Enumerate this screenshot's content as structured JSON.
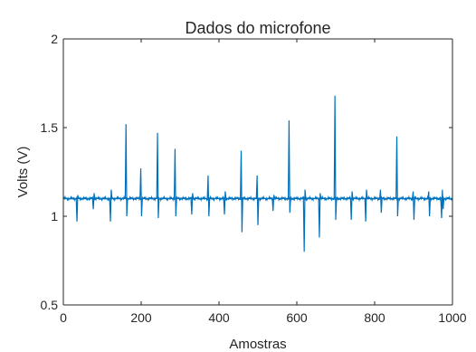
{
  "chart_data": {
    "type": "line",
    "title": "Dados do microfone",
    "xlabel": "Amostras",
    "ylabel": "Volts (V)",
    "xlim": [
      0,
      1000
    ],
    "ylim": [
      0.5,
      2
    ],
    "x_ticks": [
      "0",
      "200",
      "400",
      "600",
      "800",
      "1000"
    ],
    "y_ticks": [
      "0.5",
      "1",
      "1.5",
      "2"
    ],
    "grid": false,
    "legend": "none",
    "line_color": "#0072BD",
    "baseline": 1.1,
    "series": [
      {
        "points": [
          [
            0,
            1.1
          ],
          [
            33,
            1.1
          ],
          [
            35,
            0.97
          ],
          [
            37,
            1.12
          ],
          [
            39,
            1.1
          ],
          [
            75,
            1.1
          ],
          [
            77,
            1.04
          ],
          [
            79,
            1.13
          ],
          [
            81,
            1.1
          ],
          [
            119,
            1.1
          ],
          [
            121,
            0.97
          ],
          [
            123,
            1.15
          ],
          [
            125,
            1.1
          ],
          [
            159,
            1.1
          ],
          [
            161,
            1.52
          ],
          [
            163,
            1.0
          ],
          [
            165,
            1.1
          ],
          [
            197,
            1.1
          ],
          [
            199,
            1.27
          ],
          [
            201,
            1.0
          ],
          [
            203,
            1.1
          ],
          [
            240,
            1.1
          ],
          [
            242,
            1.47
          ],
          [
            244,
            0.99
          ],
          [
            246,
            1.1
          ],
          [
            285,
            1.1
          ],
          [
            287,
            1.38
          ],
          [
            289,
            1.0
          ],
          [
            291,
            1.1
          ],
          [
            328,
            1.1
          ],
          [
            330,
            1.01
          ],
          [
            332,
            1.13
          ],
          [
            334,
            1.1
          ],
          [
            370,
            1.1
          ],
          [
            372,
            1.23
          ],
          [
            374,
            1.0
          ],
          [
            376,
            1.1
          ],
          [
            412,
            1.1
          ],
          [
            414,
            1.01
          ],
          [
            416,
            1.14
          ],
          [
            418,
            1.1
          ],
          [
            455,
            1.1
          ],
          [
            457,
            1.37
          ],
          [
            459,
            0.91
          ],
          [
            461,
            1.1
          ],
          [
            496,
            1.1
          ],
          [
            498,
            1.23
          ],
          [
            500,
            0.95
          ],
          [
            502,
            1.1
          ],
          [
            537,
            1.1
          ],
          [
            539,
            1.03
          ],
          [
            541,
            1.12
          ],
          [
            543,
            1.1
          ],
          [
            578,
            1.1
          ],
          [
            580,
            1.54
          ],
          [
            582,
            1.02
          ],
          [
            584,
            1.1
          ],
          [
            617,
            1.1
          ],
          [
            619,
            0.8
          ],
          [
            621,
            1.15
          ],
          [
            623,
            1.1
          ],
          [
            656,
            1.1
          ],
          [
            658,
            0.88
          ],
          [
            660,
            1.13
          ],
          [
            662,
            1.1
          ],
          [
            696,
            1.1
          ],
          [
            698,
            1.68
          ],
          [
            700,
            0.98
          ],
          [
            702,
            1.1
          ],
          [
            738,
            1.1
          ],
          [
            740,
            0.98
          ],
          [
            742,
            1.14
          ],
          [
            744,
            1.1
          ],
          [
            775,
            1.1
          ],
          [
            777,
            0.97
          ],
          [
            779,
            1.15
          ],
          [
            781,
            1.1
          ],
          [
            813,
            1.1
          ],
          [
            815,
            1.15
          ],
          [
            817,
            1.02
          ],
          [
            819,
            1.1
          ],
          [
            855,
            1.1
          ],
          [
            857,
            1.45
          ],
          [
            859,
            1.0
          ],
          [
            861,
            1.1
          ],
          [
            897,
            1.1
          ],
          [
            899,
            1.14
          ],
          [
            901,
            0.98
          ],
          [
            903,
            1.1
          ],
          [
            937,
            1.1
          ],
          [
            939,
            1.14
          ],
          [
            941,
            1.0
          ],
          [
            943,
            1.1
          ],
          [
            970,
            1.1
          ],
          [
            972,
            0.99
          ],
          [
            974,
            1.15
          ],
          [
            976,
            1.04
          ],
          [
            978,
            1.1
          ],
          [
            1000,
            1.1
          ]
        ]
      }
    ]
  }
}
